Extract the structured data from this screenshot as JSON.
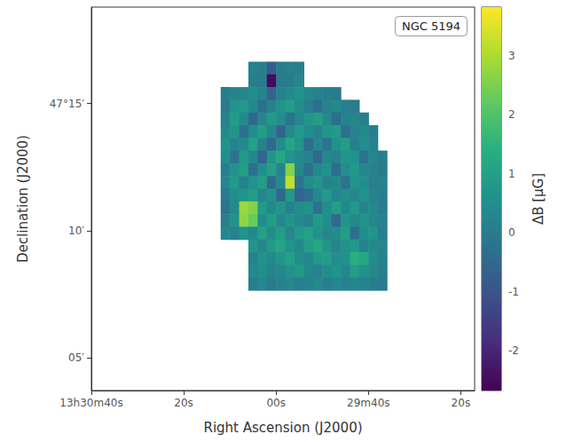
{
  "chart_data": {
    "type": "heatmap",
    "title": "NGC 5194",
    "x_label": "Right Ascension (J2000)",
    "y_label": "Declination (J2000)",
    "grid": false,
    "xlim": [
      1840,
      1757
    ],
    "xticks": [
      {
        "value": 1840,
        "label": "13h30m40s"
      },
      {
        "value": 1820,
        "label": "20s"
      },
      {
        "value": 1800,
        "label": "00s"
      },
      {
        "value": 1780,
        "label": "29m40s"
      },
      {
        "value": 1760,
        "label": "20s"
      }
    ],
    "ylim": [
      3.7,
      18.8
    ],
    "yticks": [
      {
        "value": 5,
        "label": "05′"
      },
      {
        "value": 10,
        "label": "10′"
      },
      {
        "value": 15,
        "label": "47°15′"
      }
    ],
    "x": [
      1811,
      1809,
      1807,
      1805,
      1803,
      1801,
      1799,
      1797,
      1795,
      1793,
      1791,
      1789,
      1787,
      1785,
      1783,
      1781,
      1779,
      1777
    ],
    "y": [
      16.4,
      15.9,
      15.4,
      14.9,
      14.4,
      13.9,
      13.4,
      12.9,
      12.4,
      11.9,
      11.4,
      10.9,
      10.4,
      9.9,
      9.4,
      8.9,
      8.4,
      7.9
    ],
    "values": [
      [
        null,
        null,
        null,
        0.2,
        0.1,
        -0.8,
        0.1,
        0.2,
        0.1,
        null,
        null,
        null,
        null,
        null,
        null,
        null,
        null,
        null
      ],
      [
        null,
        null,
        null,
        0.1,
        0.0,
        -2.5,
        0.0,
        0.1,
        0.3,
        null,
        null,
        null,
        null,
        null,
        null,
        null,
        null,
        null
      ],
      [
        0.1,
        0.2,
        0.3,
        0.5,
        0.2,
        -0.6,
        0.2,
        0.4,
        0.6,
        0.3,
        0.2,
        0.1,
        0.0,
        null,
        null,
        null,
        null,
        null
      ],
      [
        0.0,
        0.6,
        0.8,
        0.4,
        -0.3,
        0.2,
        0.6,
        0.9,
        0.5,
        0.1,
        -0.3,
        0.2,
        0.4,
        0.1,
        0.0,
        null,
        null,
        null
      ],
      [
        0.2,
        0.9,
        0.4,
        -0.5,
        0.3,
        0.8,
        0.5,
        -0.2,
        0.3,
        0.7,
        0.9,
        0.4,
        -0.4,
        0.2,
        0.3,
        0.1,
        null,
        null
      ],
      [
        0.4,
        0.7,
        -0.3,
        0.5,
        0.9,
        0.3,
        -0.6,
        0.4,
        0.8,
        0.5,
        0.2,
        0.7,
        0.8,
        -0.3,
        0.2,
        0.4,
        0.1,
        null
      ],
      [
        0.6,
        0.2,
        0.4,
        1.0,
        0.2,
        -0.5,
        0.5,
        1.1,
        0.7,
        -0.4,
        0.3,
        -0.2,
        0.6,
        0.9,
        0.1,
        0.5,
        0.2,
        null
      ],
      [
        0.5,
        -0.2,
        0.8,
        0.3,
        -0.6,
        0.7,
        1.2,
        0.6,
        0.4,
        0.2,
        -0.5,
        0.3,
        0.2,
        0.7,
        0.6,
        -0.2,
        0.3,
        0.1
      ],
      [
        0.1,
        0.6,
        0.9,
        -0.3,
        0.5,
        1.0,
        0.2,
        2.6,
        0.3,
        -0.3,
        0.4,
        0.6,
        -0.4,
        0.5,
        0.8,
        0.3,
        0.2,
        0.0
      ],
      [
        0.3,
        0.8,
        0.2,
        0.6,
        0.9,
        -0.4,
        0.3,
        3.2,
        -0.2,
        0.5,
        0.7,
        0.2,
        0.4,
        -0.2,
        0.7,
        0.5,
        0.1,
        0.2
      ],
      [
        0.0,
        0.5,
        0.7,
        0.9,
        0.3,
        0.6,
        -0.5,
        0.8,
        -0.6,
        -0.3,
        0.4,
        0.8,
        0.3,
        0.5,
        0.3,
        0.6,
        0.2,
        0.1
      ],
      [
        -0.2,
        0.4,
        2.8,
        2.6,
        0.8,
        0.4,
        0.7,
        0.2,
        0.5,
        0.6,
        -0.3,
        0.5,
        0.9,
        0.4,
        0.8,
        0.2,
        0.4,
        0.0
      ],
      [
        0.1,
        0.6,
        2.7,
        2.3,
        0.5,
        0.9,
        0.3,
        0.7,
        0.4,
        0.2,
        0.8,
        0.5,
        -0.5,
        0.7,
        0.4,
        0.6,
        0.3,
        0.2
      ],
      [
        0.3,
        0.2,
        0.6,
        0.4,
        1.0,
        0.5,
        0.9,
        0.3,
        0.8,
        1.0,
        0.6,
        0.3,
        0.5,
        0.9,
        -0.3,
        0.5,
        0.7,
        0.1
      ],
      [
        null,
        null,
        null,
        0.7,
        0.3,
        0.8,
        1.1,
        0.6,
        0.4,
        0.9,
        1.2,
        0.7,
        0.3,
        0.6,
        0.8,
        0.2,
        0.4,
        0.3
      ],
      [
        null,
        null,
        null,
        0.2,
        0.6,
        0.4,
        0.7,
        1.0,
        0.5,
        0.3,
        0.8,
        0.9,
        0.5,
        0.6,
        1.4,
        1.2,
        0.5,
        0.2
      ],
      [
        null,
        null,
        null,
        0.4,
        0.5,
        0.2,
        0.3,
        0.6,
        0.8,
        0.4,
        0.2,
        0.5,
        0.7,
        0.3,
        0.9,
        0.6,
        0.4,
        0.1
      ],
      [
        null,
        null,
        null,
        0.1,
        0.3,
        0.0,
        0.2,
        0.3,
        0.1,
        0.2,
        0.4,
        0.1,
        0.3,
        0.2,
        0.3,
        0.2,
        0.1,
        0.0
      ]
    ],
    "colorbar": {
      "label": "ΔB [μG]",
      "range": [
        -2.68,
        3.83
      ],
      "ticks": [
        -2,
        -1,
        0,
        1,
        2,
        3
      ]
    }
  }
}
